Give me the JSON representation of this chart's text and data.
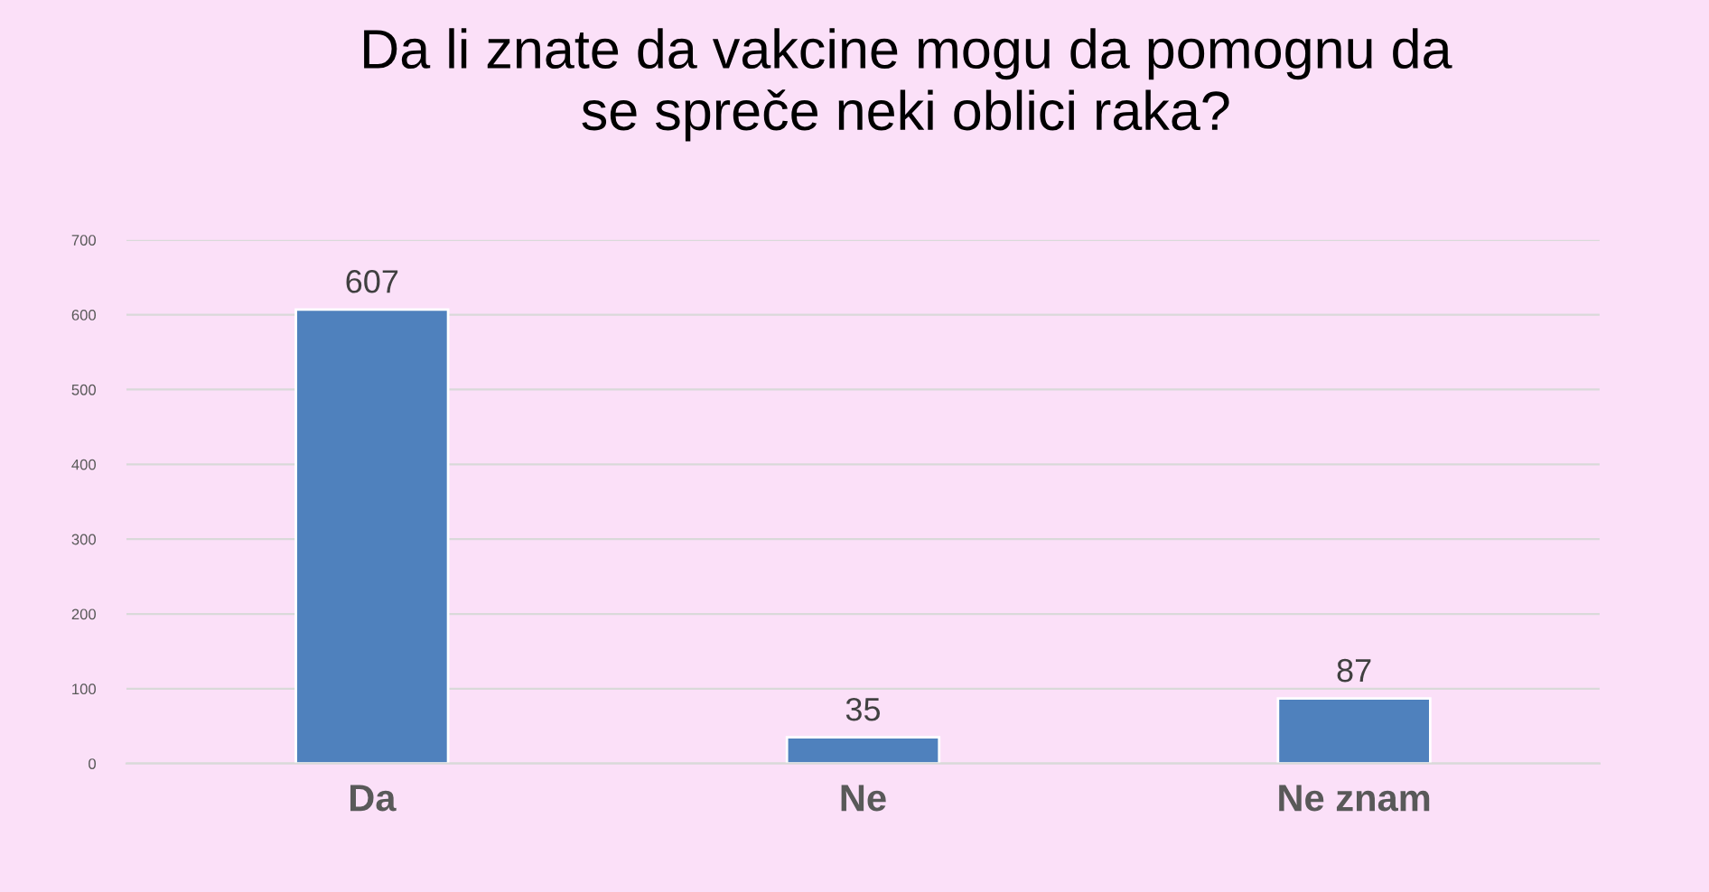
{
  "chart_data": {
    "type": "bar",
    "title": "Da li znate da vakcine mogu da pomognu da\nse spreče neki oblici raka?",
    "categories": [
      "Da",
      "Ne",
      "Ne znam"
    ],
    "values": [
      607,
      35,
      87
    ],
    "color": "#4f81bd",
    "ylim": [
      0,
      700
    ],
    "yticks": [
      0,
      100,
      200,
      300,
      400,
      500,
      600,
      700
    ],
    "grid": "y",
    "data_labels": true
  }
}
